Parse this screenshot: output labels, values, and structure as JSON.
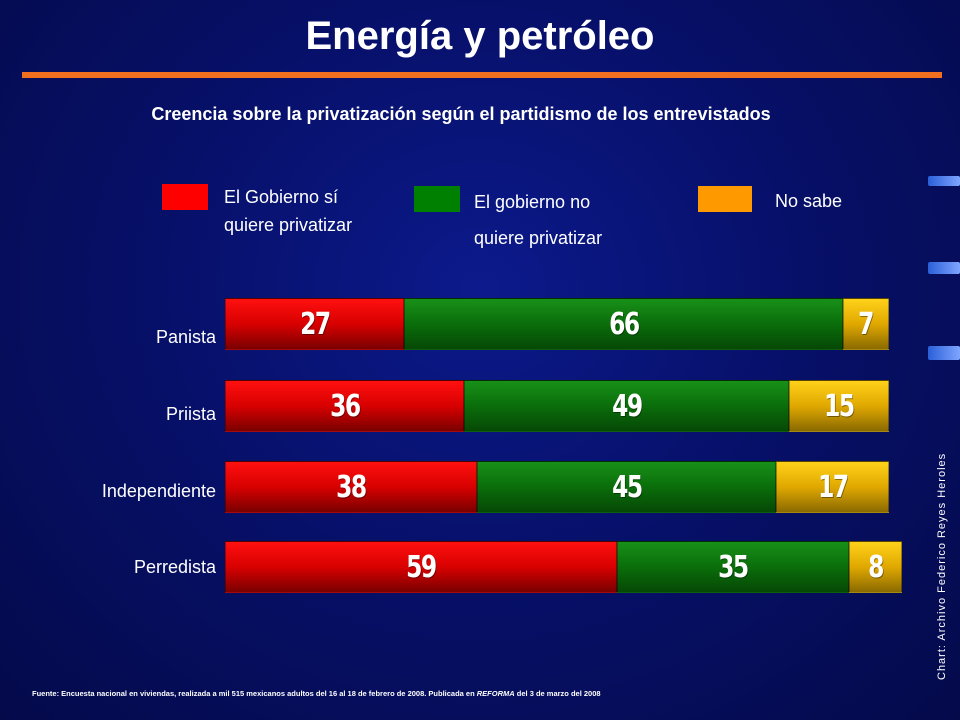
{
  "title": "Energía y petróleo",
  "subtitle": "Creencia sobre la privatización según el partidismo de los entrevistados",
  "legend": [
    {
      "label_line1": "El Gobierno sí",
      "label_line2": "quiere privatizar",
      "color": "#ff0000"
    },
    {
      "label_line1": "El gobierno no",
      "label_line2": "quiere privatizar",
      "color": "#008000"
    },
    {
      "label_line1": "No sabe",
      "label_line2": "",
      "color": "#ff9900"
    }
  ],
  "source": {
    "before_italic": "Fuente: Encuesta nacional en viviendas, realizada a mil 515 mexicanos adultos del 16 al 18 de febrero de 2008. Publicada en ",
    "italic": "REFORMA",
    "after_italic": " del 3 de marzo del 2008"
  },
  "credit": "Chart: Archivo Federico Reyes Heroles",
  "colors": {
    "accent_rule": "#f07020",
    "background": "#07106a"
  },
  "chart_data": {
    "type": "bar",
    "orientation": "horizontal",
    "stacked": true,
    "title": "Creencia sobre la privatización según el partidismo de los entrevistados",
    "categories": [
      "Panista",
      "Priista",
      "Independiente",
      "Perredista"
    ],
    "series": [
      {
        "name": "El Gobierno sí quiere privatizar",
        "values": [
          27,
          36,
          38,
          59
        ],
        "color": "#ff0000"
      },
      {
        "name": "El gobierno no quiere privatizar",
        "values": [
          66,
          49,
          45,
          35
        ],
        "color": "#008000"
      },
      {
        "name": "No sabe",
        "values": [
          7,
          15,
          17,
          8
        ],
        "color": "#ffcc00"
      }
    ],
    "xlim": [
      0,
      100
    ],
    "grid": false,
    "legend_position": "top"
  }
}
